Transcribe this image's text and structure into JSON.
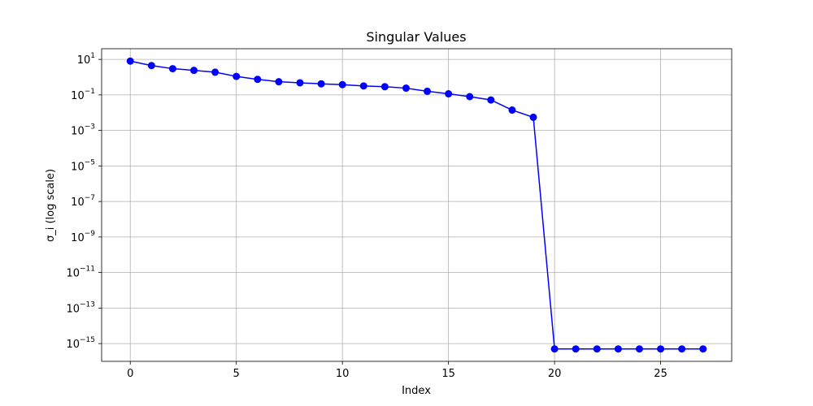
{
  "chart_data": {
    "type": "line",
    "title": "Singular Values",
    "xlabel": "Index",
    "ylabel": "σ_i (log scale)",
    "yscale": "log",
    "xlim": [
      -1.35,
      28.35
    ],
    "ylim_exp": [
      -16,
      1.6
    ],
    "xticks": [
      0,
      5,
      10,
      15,
      20,
      25
    ],
    "yticks_exp": [
      1,
      -1,
      -3,
      -5,
      -7,
      -9,
      -11,
      -13,
      -15
    ],
    "ytick_base": "10",
    "grid": true,
    "line_color": "#0000ff",
    "marker": "circle",
    "series": [
      {
        "x": [
          0,
          1,
          2,
          3,
          4,
          5,
          6,
          7,
          8,
          9,
          10,
          11,
          12,
          13,
          14,
          15,
          16,
          17,
          18,
          19,
          20,
          21,
          22,
          23,
          24,
          25,
          26,
          27
        ],
        "y": [
          8.0,
          4.5,
          3.0,
          2.4,
          1.9,
          1.1,
          0.75,
          0.55,
          0.48,
          0.42,
          0.38,
          0.32,
          0.29,
          0.24,
          0.16,
          0.115,
          0.08,
          0.052,
          0.014,
          0.0055,
          5e-16,
          5e-16,
          5e-16,
          5e-16,
          5e-16,
          5e-16,
          5e-16,
          5e-16
        ]
      }
    ]
  }
}
